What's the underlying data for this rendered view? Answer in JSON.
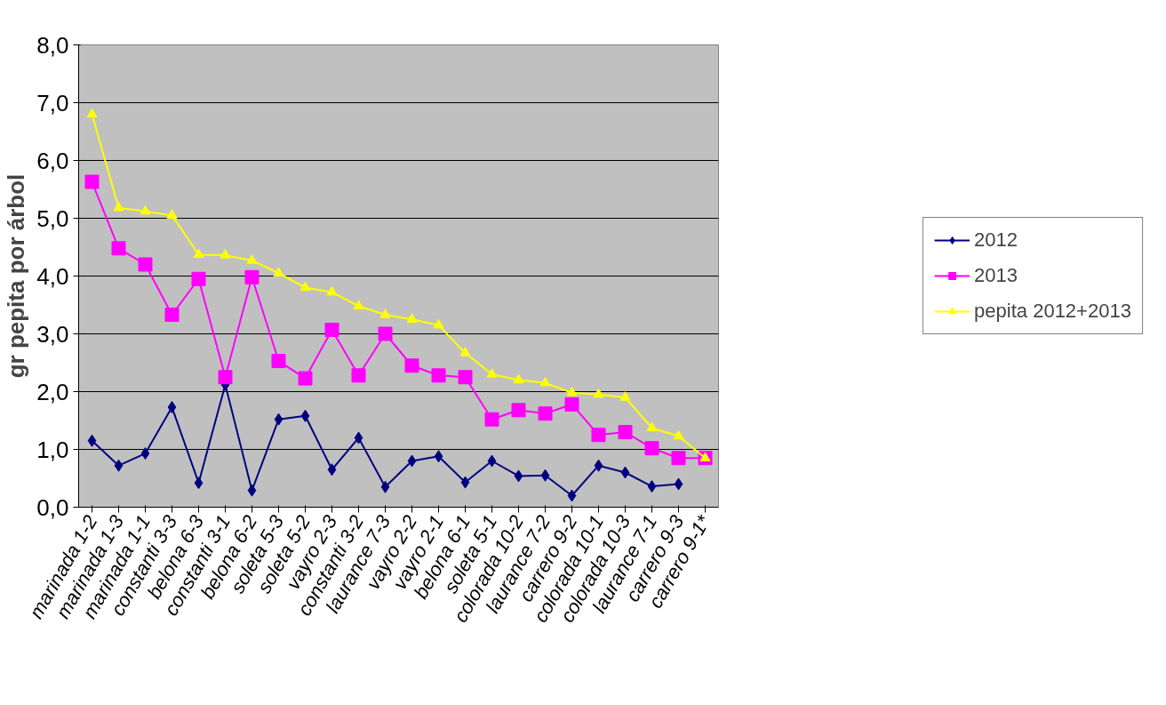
{
  "chart_data": {
    "type": "line",
    "ylabel": "gr pepita por árbol",
    "categories": [
      "marinada 1-2",
      "marinada 1-3",
      "marinada 1-1",
      "constanti 3-3",
      "belona 6-3",
      "constanti 3-1",
      "belona 6-2",
      "soleta 5-3",
      "soleta 5-2",
      "vayro 2-3",
      "constanti 3-2",
      "laurance 7-3",
      "vayro 2-2",
      "vayro 2-1",
      "belona 6-1",
      "soleta 5-1",
      "colorada 10-2",
      "laurance 7-2",
      "carrero 9-2",
      "colorada 10-1",
      "colorada 10-3",
      "laurance 7-1",
      "carrero 9-3",
      "carrero 9-1*"
    ],
    "series": [
      {
        "name": "2012",
        "color": "#000080",
        "marker": "diamond",
        "values": [
          1.15,
          0.72,
          0.93,
          1.73,
          0.42,
          2.12,
          0.29,
          1.52,
          1.58,
          0.65,
          1.2,
          0.35,
          0.8,
          0.88,
          0.43,
          0.8,
          0.54,
          0.55,
          0.2,
          0.72,
          0.6,
          0.36,
          0.4,
          null
        ]
      },
      {
        "name": "2013",
        "color": "#ff00ff",
        "marker": "square",
        "values": [
          5.63,
          4.48,
          4.2,
          3.33,
          3.95,
          2.25,
          3.98,
          2.53,
          2.23,
          3.07,
          2.28,
          3.0,
          2.45,
          2.28,
          2.25,
          1.52,
          1.68,
          1.62,
          1.78,
          1.25,
          1.3,
          1.02,
          0.85,
          0.85
        ]
      },
      {
        "name": "pepita 2012+2013",
        "color": "#ffff00",
        "marker": "triangle",
        "values": [
          6.8,
          5.18,
          5.12,
          5.05,
          4.37,
          4.36,
          4.27,
          4.05,
          3.8,
          3.72,
          3.48,
          3.33,
          3.25,
          3.15,
          2.67,
          2.3,
          2.2,
          2.15,
          1.98,
          1.95,
          1.9,
          1.37,
          1.23,
          0.85
        ]
      }
    ],
    "ylim": [
      0,
      8
    ],
    "yticks": [
      {
        "value": 0,
        "label": "0,0"
      },
      {
        "value": 1,
        "label": "1,0"
      },
      {
        "value": 2,
        "label": "2,0"
      },
      {
        "value": 3,
        "label": "3,0"
      },
      {
        "value": 4,
        "label": "4,0"
      },
      {
        "value": 5,
        "label": "5,0"
      },
      {
        "value": 6,
        "label": "6,0"
      },
      {
        "value": 7,
        "label": "7,0"
      },
      {
        "value": 8,
        "label": "8,0"
      }
    ],
    "grid": "y",
    "legend": "right",
    "line_style": "solid"
  }
}
